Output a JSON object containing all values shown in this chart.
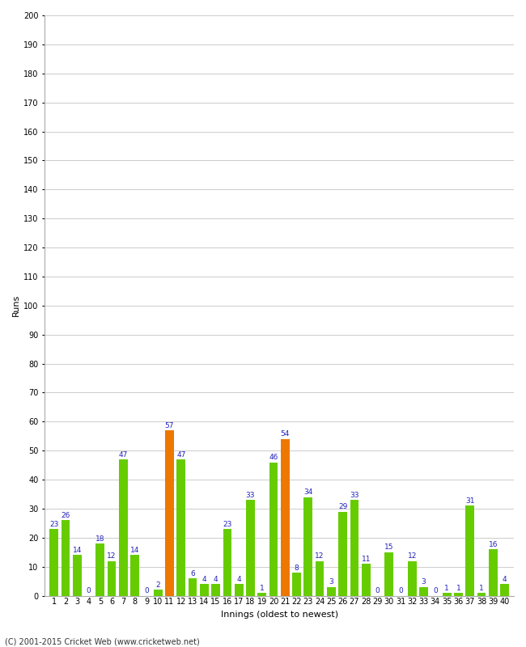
{
  "title": "",
  "xlabel": "Innings (oldest to newest)",
  "ylabel": "Runs",
  "values": [
    23,
    26,
    14,
    0,
    18,
    12,
    47,
    14,
    0,
    2,
    57,
    47,
    6,
    4,
    4,
    23,
    4,
    33,
    1,
    46,
    54,
    8,
    34,
    12,
    3,
    29,
    33,
    11,
    0,
    15,
    0,
    12,
    3,
    0,
    1,
    1,
    31,
    1,
    16,
    4
  ],
  "innings": [
    1,
    2,
    3,
    4,
    5,
    6,
    7,
    8,
    9,
    10,
    11,
    12,
    13,
    14,
    15,
    16,
    17,
    18,
    19,
    20,
    21,
    22,
    23,
    24,
    25,
    26,
    27,
    28,
    29,
    30,
    31,
    32,
    33,
    34,
    35,
    36,
    37,
    38,
    39,
    40
  ],
  "orange_indices": [
    10,
    20
  ],
  "bar_color_default": "#66cc00",
  "bar_color_highlight": "#ee7700",
  "value_color": "#2222bb",
  "background_color": "#ffffff",
  "grid_color": "#cccccc",
  "ylim": [
    0,
    200
  ],
  "yticks": [
    0,
    10,
    20,
    30,
    40,
    50,
    60,
    70,
    80,
    90,
    100,
    110,
    120,
    130,
    140,
    150,
    160,
    170,
    180,
    190,
    200
  ],
  "axis_label_fontsize": 8,
  "tick_fontsize": 7,
  "value_fontsize": 6.5,
  "footer": "(C) 2001-2015 Cricket Web (www.cricketweb.net)"
}
